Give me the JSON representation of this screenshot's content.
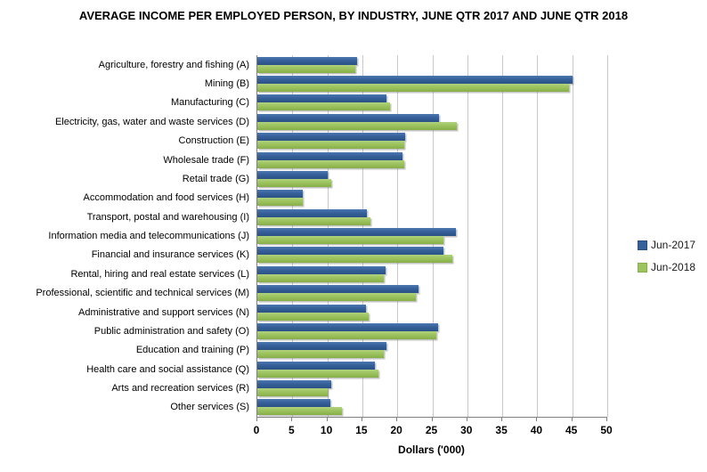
{
  "title": "AVERAGE INCOME PER EMPLOYED PERSON, BY INDUSTRY, JUNE QTR 2017 AND JUNE QTR 2018",
  "chart_data": {
    "type": "bar",
    "orientation": "horizontal",
    "title": "AVERAGE INCOME PER EMPLOYED PERSON, BY INDUSTRY, JUNE QTR 2017 AND JUNE QTR 2018",
    "xlabel": "Dollars ('000)",
    "xlim": [
      0,
      50
    ],
    "xticks": [
      0,
      5,
      10,
      15,
      20,
      25,
      30,
      35,
      40,
      45,
      50
    ],
    "grid": true,
    "legend_position": "right",
    "categories": [
      "Agriculture, forestry and fishing (A)",
      "Mining (B)",
      "Manufacturing (C)",
      "Electricity, gas, water and waste services (D)",
      "Construction (E)",
      "Wholesale trade (F)",
      "Retail trade (G)",
      "Accommodation and food services (H)",
      "Transport, postal and warehousing (I)",
      "Information media and telecommunications (J)",
      "Financial and insurance services (K)",
      "Rental, hiring and real estate services (L)",
      "Professional, scientific and technical services (M)",
      "Administrative and support services (N)",
      "Public administration and safety (O)",
      "Education and training (P)",
      "Health care and social assistance (Q)",
      "Arts and recreation services (R)",
      "Other services (S)"
    ],
    "series": [
      {
        "name": "Jun-2017",
        "color": "#35609A",
        "color_light": "#4E78B0",
        "color_dark": "#2A5185",
        "values": [
          14.2,
          45.0,
          18.5,
          25.9,
          21.1,
          20.8,
          10.1,
          6.5,
          15.7,
          28.4,
          26.6,
          18.3,
          23.0,
          15.5,
          25.8,
          18.4,
          16.8,
          10.5,
          10.4
        ]
      },
      {
        "name": "Jun-2018",
        "color": "#9CC35E",
        "color_light": "#B1D27E",
        "color_dark": "#87AF49",
        "values": [
          14.0,
          44.5,
          19.0,
          28.5,
          21.0,
          21.0,
          10.6,
          6.5,
          16.2,
          26.6,
          27.9,
          18.1,
          22.6,
          15.9,
          25.6,
          18.1,
          17.3,
          10.1,
          12.1
        ]
      }
    ]
  }
}
